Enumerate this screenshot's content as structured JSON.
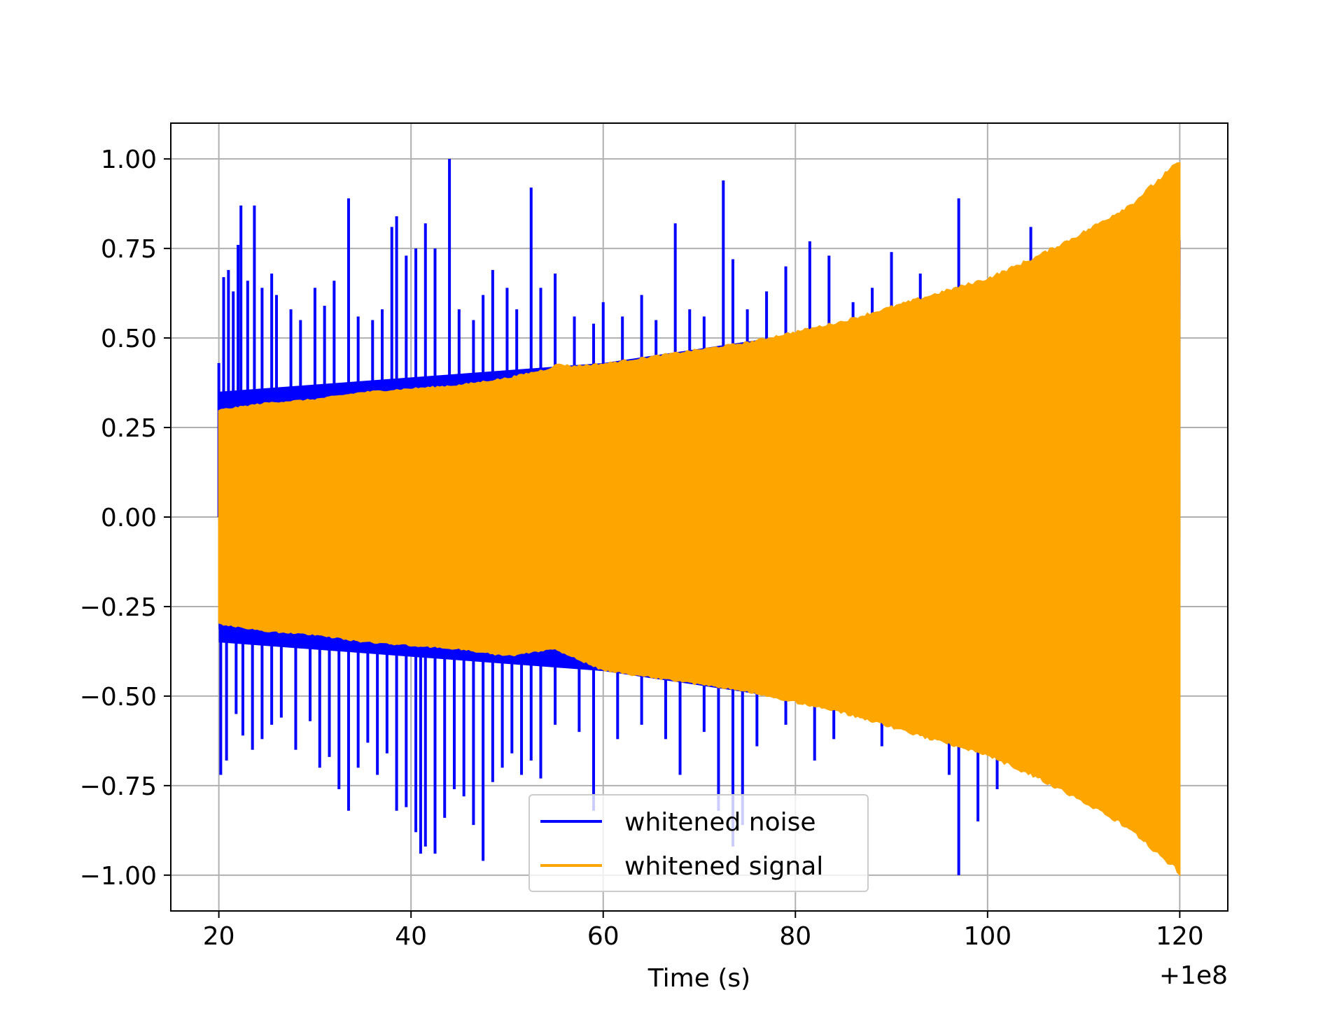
{
  "chart_data": {
    "type": "line",
    "title": "",
    "xlabel": "Time (s)",
    "ylabel": "",
    "x_offset_label": "+1e8",
    "x_offset_value": 100000000,
    "xlim": [
      15,
      125
    ],
    "ylim": [
      -1.1,
      1.1
    ],
    "grid": true,
    "legend_position": "lower center",
    "x_ticks": [
      20,
      40,
      60,
      80,
      100,
      120
    ],
    "x_tick_labels": [
      "20",
      "40",
      "60",
      "80",
      "100",
      "120"
    ],
    "y_ticks": [
      1.0,
      0.75,
      0.5,
      0.25,
      0.0,
      -0.25,
      -0.5,
      -0.75,
      -1.0
    ],
    "y_tick_labels": [
      "1.00",
      "0.75",
      "0.50",
      "0.25",
      "0.00",
      "−0.25",
      "−0.50",
      "−0.75",
      "−1.00"
    ],
    "series": [
      {
        "name": "whitened noise",
        "color": "#0000ff",
        "x_range": [
          20,
          120
        ],
        "envelope": {
          "x": [
            20,
            25,
            30,
            35,
            40,
            45,
            50,
            55,
            60,
            65,
            70,
            75,
            80,
            85,
            90,
            95,
            100,
            105,
            110,
            115,
            120
          ],
          "upper": [
            0.35,
            0.36,
            0.37,
            0.38,
            0.39,
            0.4,
            0.41,
            0.42,
            0.43,
            0.45,
            0.47,
            0.49,
            0.51,
            0.53,
            0.55,
            0.58,
            0.61,
            0.65,
            0.7,
            0.75,
            0.8
          ],
          "lower": [
            -0.35,
            -0.36,
            -0.37,
            -0.38,
            -0.39,
            -0.4,
            -0.41,
            -0.42,
            -0.43,
            -0.45,
            -0.47,
            -0.49,
            -0.51,
            -0.53,
            -0.55,
            -0.58,
            -0.61,
            -0.65,
            -0.7,
            -0.75,
            -0.8
          ]
        },
        "spikes": [
          {
            "x": 20.0,
            "y": 0.43
          },
          {
            "x": 20.5,
            "y": 0.67
          },
          {
            "x": 21.0,
            "y": 0.69
          },
          {
            "x": 21.5,
            "y": 0.63
          },
          {
            "x": 22.0,
            "y": 0.76
          },
          {
            "x": 22.3,
            "y": 0.87
          },
          {
            "x": 23.0,
            "y": 0.66
          },
          {
            "x": 23.7,
            "y": 0.87
          },
          {
            "x": 24.5,
            "y": 0.64
          },
          {
            "x": 25.5,
            "y": 0.68
          },
          {
            "x": 26.0,
            "y": 0.62
          },
          {
            "x": 27.5,
            "y": 0.58
          },
          {
            "x": 28.5,
            "y": 0.55
          },
          {
            "x": 30.0,
            "y": 0.64
          },
          {
            "x": 31.0,
            "y": 0.59
          },
          {
            "x": 32.0,
            "y": 0.66
          },
          {
            "x": 33.5,
            "y": 0.89
          },
          {
            "x": 34.5,
            "y": 0.56
          },
          {
            "x": 36.0,
            "y": 0.55
          },
          {
            "x": 37.0,
            "y": 0.58
          },
          {
            "x": 38.0,
            "y": 0.81
          },
          {
            "x": 38.5,
            "y": 0.84
          },
          {
            "x": 39.5,
            "y": 0.73
          },
          {
            "x": 40.5,
            "y": 0.75
          },
          {
            "x": 41.5,
            "y": 0.82
          },
          {
            "x": 42.5,
            "y": 0.75
          },
          {
            "x": 44.0,
            "y": 1.0
          },
          {
            "x": 45.0,
            "y": 0.58
          },
          {
            "x": 46.5,
            "y": 0.55
          },
          {
            "x": 47.5,
            "y": 0.62
          },
          {
            "x": 48.5,
            "y": 0.69
          },
          {
            "x": 50.0,
            "y": 0.64
          },
          {
            "x": 51.0,
            "y": 0.58
          },
          {
            "x": 52.5,
            "y": 0.92
          },
          {
            "x": 53.5,
            "y": 0.64
          },
          {
            "x": 55.0,
            "y": 0.68
          },
          {
            "x": 57.0,
            "y": 0.56
          },
          {
            "x": 59.0,
            "y": 0.54
          },
          {
            "x": 60.0,
            "y": 0.6
          },
          {
            "x": 62.0,
            "y": 0.56
          },
          {
            "x": 64.0,
            "y": 0.62
          },
          {
            "x": 65.5,
            "y": 0.55
          },
          {
            "x": 67.5,
            "y": 0.82
          },
          {
            "x": 69.0,
            "y": 0.58
          },
          {
            "x": 70.5,
            "y": 0.56
          },
          {
            "x": 72.5,
            "y": 0.94
          },
          {
            "x": 73.5,
            "y": 0.72
          },
          {
            "x": 75.0,
            "y": 0.58
          },
          {
            "x": 77.0,
            "y": 0.63
          },
          {
            "x": 79.0,
            "y": 0.7
          },
          {
            "x": 81.5,
            "y": 0.77
          },
          {
            "x": 83.5,
            "y": 0.73
          },
          {
            "x": 86.0,
            "y": 0.6
          },
          {
            "x": 88.0,
            "y": 0.64
          },
          {
            "x": 90.0,
            "y": 0.74
          },
          {
            "x": 93.0,
            "y": 0.68
          },
          {
            "x": 97.0,
            "y": 0.89
          },
          {
            "x": 104.5,
            "y": 0.81
          },
          {
            "x": 20.2,
            "y": -0.72
          },
          {
            "x": 20.8,
            "y": -0.68
          },
          {
            "x": 21.8,
            "y": -0.55
          },
          {
            "x": 22.5,
            "y": -0.61
          },
          {
            "x": 23.5,
            "y": -0.65
          },
          {
            "x": 24.5,
            "y": -0.62
          },
          {
            "x": 25.5,
            "y": -0.58
          },
          {
            "x": 26.5,
            "y": -0.56
          },
          {
            "x": 28.0,
            "y": -0.65
          },
          {
            "x": 29.5,
            "y": -0.57
          },
          {
            "x": 30.5,
            "y": -0.7
          },
          {
            "x": 31.5,
            "y": -0.67
          },
          {
            "x": 32.5,
            "y": -0.76
          },
          {
            "x": 33.5,
            "y": -0.82
          },
          {
            "x": 34.5,
            "y": -0.7
          },
          {
            "x": 35.5,
            "y": -0.63
          },
          {
            "x": 36.5,
            "y": -0.72
          },
          {
            "x": 37.5,
            "y": -0.66
          },
          {
            "x": 38.5,
            "y": -0.82
          },
          {
            "x": 39.5,
            "y": -0.81
          },
          {
            "x": 40.5,
            "y": -0.88
          },
          {
            "x": 41.0,
            "y": -0.94
          },
          {
            "x": 41.5,
            "y": -0.92
          },
          {
            "x": 42.5,
            "y": -0.94
          },
          {
            "x": 43.5,
            "y": -0.84
          },
          {
            "x": 44.5,
            "y": -0.76
          },
          {
            "x": 45.5,
            "y": -0.78
          },
          {
            "x": 46.5,
            "y": -0.86
          },
          {
            "x": 47.5,
            "y": -0.96
          },
          {
            "x": 48.5,
            "y": -0.74
          },
          {
            "x": 49.5,
            "y": -0.7
          },
          {
            "x": 50.5,
            "y": -0.66
          },
          {
            "x": 51.5,
            "y": -0.72
          },
          {
            "x": 52.5,
            "y": -0.68
          },
          {
            "x": 53.5,
            "y": -0.73
          },
          {
            "x": 55.0,
            "y": -0.58
          },
          {
            "x": 57.5,
            "y": -0.6
          },
          {
            "x": 59.0,
            "y": -0.82
          },
          {
            "x": 61.5,
            "y": -0.62
          },
          {
            "x": 64.0,
            "y": -0.58
          },
          {
            "x": 66.5,
            "y": -0.62
          },
          {
            "x": 68.0,
            "y": -0.72
          },
          {
            "x": 70.5,
            "y": -0.6
          },
          {
            "x": 72.0,
            "y": -0.82
          },
          {
            "x": 73.5,
            "y": -0.92
          },
          {
            "x": 74.5,
            "y": -0.86
          },
          {
            "x": 76.0,
            "y": -0.64
          },
          {
            "x": 79.0,
            "y": -0.58
          },
          {
            "x": 82.0,
            "y": -0.68
          },
          {
            "x": 84.0,
            "y": -0.62
          },
          {
            "x": 89.0,
            "y": -0.64
          },
          {
            "x": 96.0,
            "y": -0.72
          },
          {
            "x": 97.0,
            "y": -1.0
          },
          {
            "x": 99.0,
            "y": -0.85
          },
          {
            "x": 101.0,
            "y": -0.76
          }
        ]
      },
      {
        "name": "whitened signal",
        "color": "#ffa500",
        "x_range": [
          20,
          120
        ],
        "envelope": {
          "x": [
            20,
            25,
            30,
            35,
            40,
            45,
            50,
            55,
            60,
            65,
            70,
            75,
            80,
            85,
            90,
            95,
            100,
            105,
            110,
            115,
            120
          ],
          "upper": [
            0.3,
            0.32,
            0.33,
            0.35,
            0.36,
            0.37,
            0.39,
            0.42,
            0.43,
            0.45,
            0.47,
            0.49,
            0.52,
            0.55,
            0.59,
            0.63,
            0.67,
            0.73,
            0.8,
            0.88,
            1.0
          ],
          "lower": [
            -0.3,
            -0.32,
            -0.33,
            -0.35,
            -0.36,
            -0.37,
            -0.39,
            -0.37,
            -0.43,
            -0.45,
            -0.47,
            -0.49,
            -0.52,
            -0.55,
            -0.59,
            -0.63,
            -0.67,
            -0.73,
            -0.8,
            -0.88,
            -1.0
          ]
        },
        "features": [
          {
            "x": 55.5,
            "upper": 0.43,
            "lower": -0.36
          }
        ]
      }
    ]
  }
}
